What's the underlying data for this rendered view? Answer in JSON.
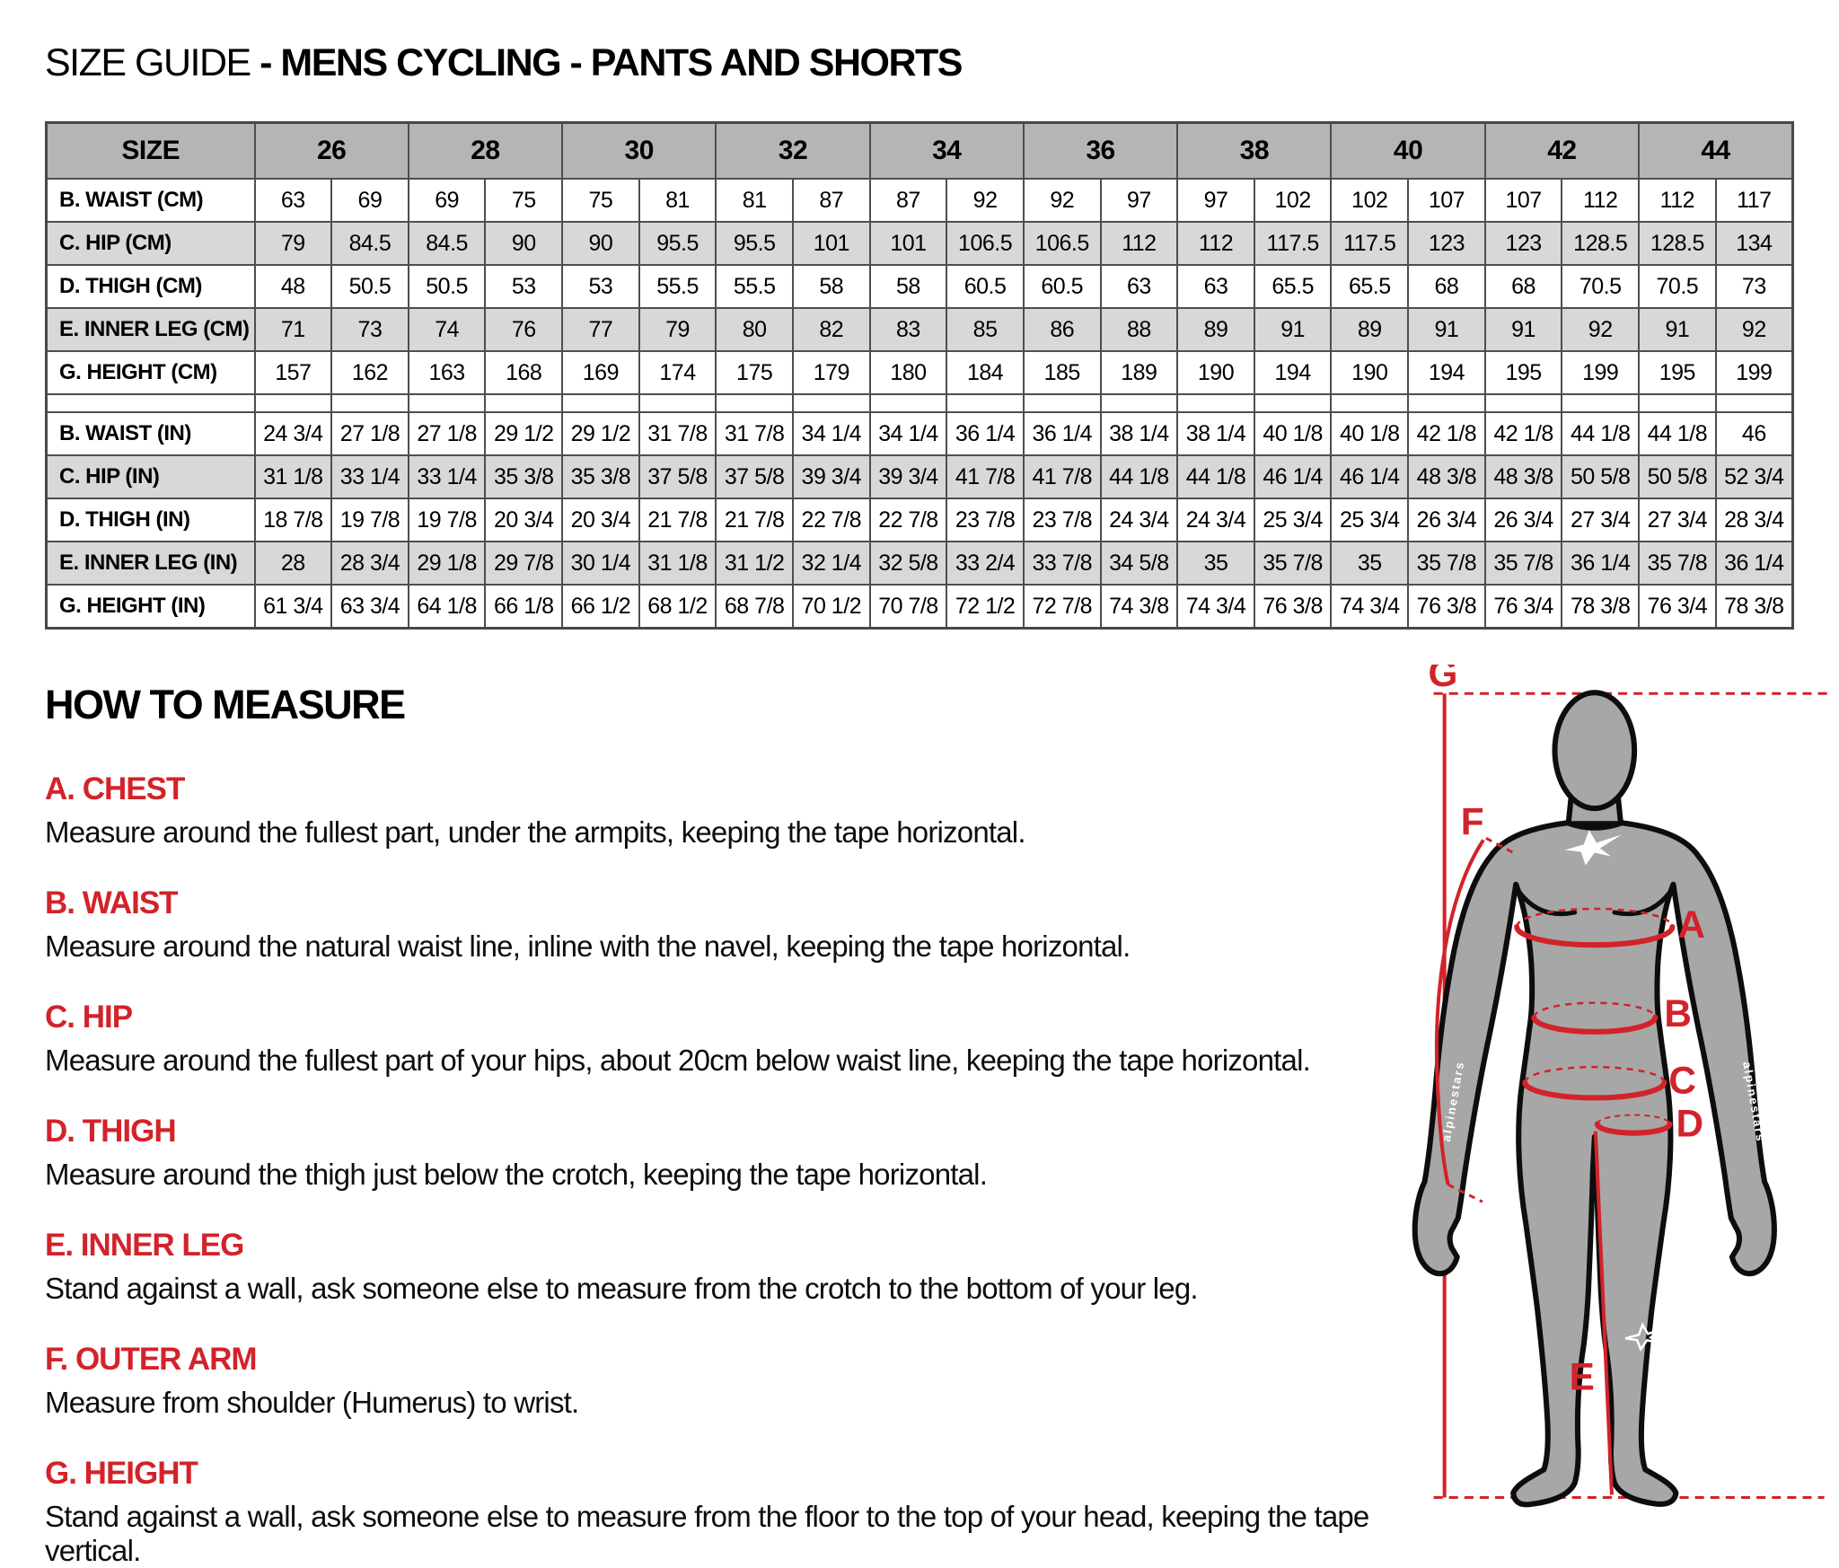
{
  "title": {
    "prefix": "SIZE GUIDE",
    "rest": " - MENS CYCLING - PANTS AND SHORTS"
  },
  "table": {
    "corner_label": "SIZE",
    "sizes": [
      "26",
      "28",
      "30",
      "32",
      "34",
      "36",
      "38",
      "40",
      "42",
      "44"
    ],
    "cm_rows": [
      {
        "label": "B. WAIST (CM)",
        "values": [
          "63",
          "69",
          "69",
          "75",
          "75",
          "81",
          "81",
          "87",
          "87",
          "92",
          "92",
          "97",
          "97",
          "102",
          "102",
          "107",
          "107",
          "112",
          "112",
          "117"
        ]
      },
      {
        "label": "C. HIP (CM)",
        "values": [
          "79",
          "84.5",
          "84.5",
          "90",
          "90",
          "95.5",
          "95.5",
          "101",
          "101",
          "106.5",
          "106.5",
          "112",
          "112",
          "117.5",
          "117.5",
          "123",
          "123",
          "128.5",
          "128.5",
          "134"
        ]
      },
      {
        "label": "D. THIGH (CM)",
        "values": [
          "48",
          "50.5",
          "50.5",
          "53",
          "53",
          "55.5",
          "55.5",
          "58",
          "58",
          "60.5",
          "60.5",
          "63",
          "63",
          "65.5",
          "65.5",
          "68",
          "68",
          "70.5",
          "70.5",
          "73"
        ]
      },
      {
        "label": "E. INNER LEG (CM)",
        "values": [
          "71",
          "73",
          "74",
          "76",
          "77",
          "79",
          "80",
          "82",
          "83",
          "85",
          "86",
          "88",
          "89",
          "91",
          "89",
          "91",
          "91",
          "92",
          "91",
          "92"
        ]
      },
      {
        "label": "G. HEIGHT (CM)",
        "values": [
          "157",
          "162",
          "163",
          "168",
          "169",
          "174",
          "175",
          "179",
          "180",
          "184",
          "185",
          "189",
          "190",
          "194",
          "190",
          "194",
          "195",
          "199",
          "195",
          "199"
        ]
      }
    ],
    "in_rows": [
      {
        "label": "B. WAIST (IN)",
        "values": [
          "24 3/4",
          "27 1/8",
          "27 1/8",
          "29 1/2",
          "29 1/2",
          "31 7/8",
          "31 7/8",
          "34 1/4",
          "34 1/4",
          "36 1/4",
          "36 1/4",
          "38 1/4",
          "38 1/4",
          "40 1/8",
          "40 1/8",
          "42 1/8",
          "42 1/8",
          "44 1/8",
          "44 1/8",
          "46"
        ]
      },
      {
        "label": "C. HIP (IN)",
        "values": [
          "31 1/8",
          "33 1/4",
          "33 1/4",
          "35 3/8",
          "35 3/8",
          "37 5/8",
          "37 5/8",
          "39 3/4",
          "39 3/4",
          "41 7/8",
          "41 7/8",
          "44 1/8",
          "44 1/8",
          "46 1/4",
          "46 1/4",
          "48 3/8",
          "48 3/8",
          "50 5/8",
          "50 5/8",
          "52 3/4"
        ]
      },
      {
        "label": "D. THIGH (IN)",
        "values": [
          "18 7/8",
          "19 7/8",
          "19 7/8",
          "20 3/4",
          "20 3/4",
          "21 7/8",
          "21 7/8",
          "22 7/8",
          "22 7/8",
          "23 7/8",
          "23 7/8",
          "24 3/4",
          "24 3/4",
          "25 3/4",
          "25 3/4",
          "26 3/4",
          "26 3/4",
          "27 3/4",
          "27 3/4",
          "28 3/4"
        ]
      },
      {
        "label": "E. INNER LEG (IN)",
        "values": [
          "28",
          "28 3/4",
          "29 1/8",
          "29 7/8",
          "30 1/4",
          "31 1/8",
          "31 1/2",
          "32 1/4",
          "32 5/8",
          "33 2/4",
          "33 7/8",
          "34 5/8",
          "35",
          "35 7/8",
          "35",
          "35 7/8",
          "35 7/8",
          "36 1/4",
          "35 7/8",
          "36 1/4"
        ]
      },
      {
        "label": "G. HEIGHT (IN)",
        "values": [
          "61 3/4",
          "63 3/4",
          "64 1/8",
          "66 1/8",
          "66 1/2",
          "68 1/2",
          "68 7/8",
          "70 1/2",
          "70 7/8",
          "72 1/2",
          "72 7/8",
          "74 3/8",
          "74 3/4",
          "76 3/8",
          "74 3/4",
          "76 3/8",
          "76 3/4",
          "78 3/8",
          "76 3/4",
          "78 3/8"
        ]
      }
    ]
  },
  "how_to_measure": {
    "heading": "HOW TO MEASURE",
    "items": [
      {
        "label": "A. CHEST",
        "text": "Measure around the fullest part, under the armpits, keeping the tape horizontal."
      },
      {
        "label": "B. WAIST",
        "text": "Measure around the natural waist line, inline with the navel, keeping the tape horizontal."
      },
      {
        "label": "C. HIP",
        "text": "Measure around the fullest part of your hips, about 20cm below waist line, keeping the tape horizontal."
      },
      {
        "label": "D. THIGH",
        "text": "Measure around the thigh just below the crotch, keeping the tape horizontal."
      },
      {
        "label": "E. INNER LEG",
        "text": "Stand against a wall, ask someone else to measure from the crotch to the bottom of your leg."
      },
      {
        "label": "F. OUTER ARM",
        "text": "Measure from shoulder (Humerus) to wrist."
      },
      {
        "label": "G. HEIGHT",
        "text": "Stand against a wall, ask someone else to measure from the floor to the top of your head, keeping the tape vertical."
      }
    ]
  },
  "diagram": {
    "labels": {
      "a": "A",
      "b": "B",
      "c": "C",
      "d": "D",
      "e": "E",
      "f": "F",
      "g": "G"
    }
  },
  "colors": {
    "accent_red": "#d2232a",
    "header_bg": "#b5b5b5",
    "alt_row_bg": "#d8d8d8",
    "table_border": "#4e4e4e",
    "body_fill": "#a7a7a7"
  }
}
